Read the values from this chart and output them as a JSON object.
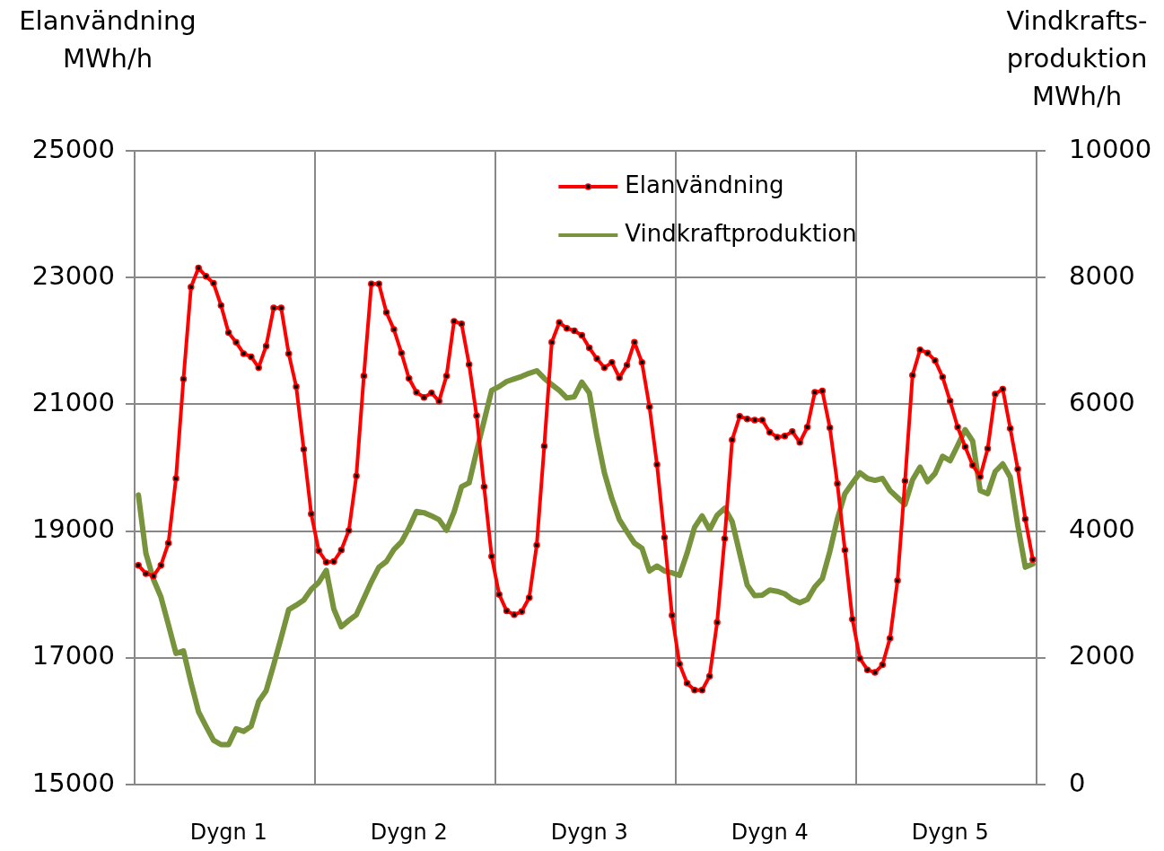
{
  "chart_data": {
    "type": "line",
    "ylabel": "Elanvändning MWh/h",
    "y2label": "Vindkrafts-produktion MWh/h",
    "categories": [
      null,
      null,
      null,
      null,
      null,
      null,
      null,
      null,
      null,
      null,
      null,
      null,
      "Dygn 1",
      null,
      null,
      null,
      null,
      null,
      null,
      null,
      null,
      null,
      null,
      null,
      null,
      null,
      null,
      null,
      null,
      null,
      null,
      null,
      null,
      null,
      null,
      null,
      "Dygn 2",
      null,
      null,
      null,
      null,
      null,
      null,
      null,
      null,
      null,
      null,
      null,
      null,
      null,
      null,
      null,
      null,
      null,
      null,
      null,
      null,
      null,
      null,
      null,
      "Dygn 3",
      null,
      null,
      null,
      null,
      null,
      null,
      null,
      null,
      null,
      null,
      null,
      null,
      null,
      null,
      null,
      null,
      null,
      null,
      null,
      null,
      null,
      null,
      null,
      "Dygn 4",
      null,
      null,
      null,
      null,
      null,
      null,
      null,
      null,
      null,
      null,
      null,
      null,
      null,
      null,
      null,
      null,
      null,
      null,
      null,
      null,
      null,
      null,
      null,
      "Dygn 5",
      null,
      null,
      null,
      null,
      null,
      null,
      null,
      null,
      null,
      null,
      null
    ],
    "series": [
      {
        "name": "Elanvändning",
        "color": "#ff0000",
        "marker": "circle",
        "values": [
          18460,
          18330,
          18290,
          18460,
          18810,
          19830,
          21400,
          22850,
          23150,
          23020,
          22910,
          22560,
          22130,
          21980,
          21800,
          21750,
          21580,
          21920,
          22520,
          22520,
          21800,
          21280,
          20290,
          19270,
          18690,
          18510,
          18520,
          18700,
          19010,
          19870,
          21450,
          22900,
          22900,
          22450,
          22180,
          21810,
          21410,
          21190,
          21110,
          21180,
          21050,
          21450,
          22310,
          22270,
          21630,
          20820,
          19700,
          18600,
          18000,
          17740,
          17680,
          17730,
          17950,
          18780,
          20340,
          21980,
          22290,
          22200,
          22160,
          22090,
          21890,
          21720,
          21580,
          21660,
          21420,
          21620,
          21980,
          21660,
          20960,
          20050,
          18900,
          17670,
          16900,
          16600,
          16490,
          16490,
          16710,
          17560,
          18880,
          20440,
          20810,
          20770,
          20750,
          20750,
          20560,
          20480,
          20500,
          20570,
          20400,
          20640,
          21190,
          21210,
          20630,
          19750,
          18700,
          17610,
          16990,
          16810,
          16770,
          16890,
          17310,
          18220,
          19790,
          21460,
          21860,
          21810,
          21690,
          21430,
          21050,
          20640,
          20330,
          20040,
          19860,
          20300,
          21160,
          21240,
          20620,
          19980,
          19190,
          18550
        ]
      },
      {
        "name": "Vindkraftproduktion",
        "color": "#77933c",
        "marker": "none",
        "axis": "y2",
        "values": [
          4570,
          3650,
          3240,
          2960,
          2520,
          2070,
          2110,
          1610,
          1150,
          920,
          700,
          630,
          630,
          880,
          840,
          920,
          1310,
          1480,
          1890,
          2320,
          2760,
          2830,
          2910,
          3080,
          3190,
          3380,
          2770,
          2490,
          2590,
          2680,
          2940,
          3200,
          3430,
          3520,
          3710,
          3830,
          4050,
          4310,
          4290,
          4240,
          4180,
          4010,
          4300,
          4700,
          4760,
          5260,
          5740,
          6220,
          6280,
          6360,
          6400,
          6440,
          6490,
          6530,
          6410,
          6310,
          6220,
          6100,
          6120,
          6350,
          6180,
          5500,
          4920,
          4510,
          4180,
          3990,
          3810,
          3730,
          3370,
          3450,
          3370,
          3340,
          3300,
          3650,
          4060,
          4240,
          4020,
          4250,
          4360,
          4150,
          3650,
          3150,
          2980,
          2990,
          3070,
          3050,
          3010,
          2920,
          2870,
          2920,
          3120,
          3250,
          3680,
          4190,
          4590,
          4760,
          4920,
          4830,
          4800,
          4830,
          4640,
          4530,
          4420,
          4810,
          5010,
          4780,
          4910,
          5180,
          5110,
          5350,
          5600,
          5420,
          4640,
          4590,
          4940,
          5060,
          4850,
          4090,
          3430,
          3480
        ]
      }
    ],
    "ylim": [
      15000,
      25000
    ],
    "yticks": [
      15000,
      17000,
      19000,
      21000,
      23000,
      25000
    ],
    "y2lim": [
      0,
      10000
    ],
    "y2ticks": [
      0,
      2000,
      4000,
      6000,
      8000,
      10000
    ],
    "grid": true,
    "legend": "top",
    "line_style": "solid"
  }
}
